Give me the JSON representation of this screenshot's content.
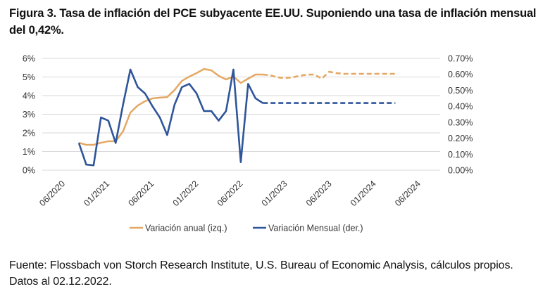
{
  "title": "Figura 3. Tasa de inflación del PCE subyacente EE.UU. Suponiendo una tasa de inflación mensual del 0,42%.",
  "source": "Fuente: Flossbach von Storch Research Institute, U.S. Bureau of Economic Analysis, cálculos propios. Datos al 02.12.2022.",
  "chart_data": {
    "type": "line",
    "title": "Tasa de inflación del PCE subyacente EE.UU.",
    "xlabel": "",
    "ylabel_left": "Variación anual (izq.)",
    "ylabel_right": "Variación Mensual (der.)",
    "ylim_left": [
      0,
      6
    ],
    "ylim_right": [
      0,
      0.7
    ],
    "y_ticks_left": [
      "0%",
      "1%",
      "2%",
      "3%",
      "4%",
      "5%",
      "6%"
    ],
    "y_ticks_right": [
      "0.00%",
      "0.10%",
      "0.20%",
      "0.30%",
      "0.40%",
      "0.50%",
      "0.60%",
      "0.70%"
    ],
    "x_ticks": [
      "06/2020",
      "01/2021",
      "06/2021",
      "01/2022",
      "06/2022",
      "01/2023",
      "06/2023",
      "01/2024",
      "06/2024"
    ],
    "grid": true,
    "legend_position": "bottom",
    "colors": {
      "annual": "#E5A864",
      "monthly": "#2F559A",
      "grid": "#D9D9D9"
    },
    "series": [
      {
        "name": "Variación anual (izq.)",
        "axis": "left",
        "unit": "%",
        "values": [
          1.47,
          1.36,
          1.36,
          1.47,
          1.55,
          1.55,
          2.08,
          3.09,
          3.47,
          3.7,
          3.85,
          3.89,
          3.92,
          4.3,
          4.79,
          5.02,
          5.21,
          5.43,
          5.36,
          5.06,
          4.87,
          5.02,
          4.68,
          4.91,
          5.13,
          5.13
        ],
        "forecast": [
          5.13,
          5.09,
          4.98,
          4.94,
          4.98,
          5.06,
          5.13,
          5.13,
          4.91,
          5.28,
          5.21,
          5.17,
          5.17,
          5.17,
          5.17,
          5.17,
          5.17,
          5.17,
          5.17
        ]
      },
      {
        "name": "Variación Mensual (der.)",
        "axis": "right",
        "unit": "%",
        "values": [
          0.17,
          0.035,
          0.03,
          0.33,
          0.31,
          0.17,
          0.41,
          0.63,
          0.52,
          0.48,
          0.4,
          0.33,
          0.22,
          0.41,
          0.52,
          0.54,
          0.48,
          0.37,
          0.37,
          0.31,
          0.37,
          0.63,
          0.05,
          0.54,
          0.45,
          0.42
        ],
        "forecast": [
          0.42,
          0.42,
          0.42,
          0.42,
          0.42,
          0.42,
          0.42,
          0.42,
          0.42,
          0.42,
          0.42,
          0.42,
          0.42,
          0.42,
          0.42,
          0.42,
          0.42,
          0.42,
          0.42
        ]
      }
    ]
  }
}
